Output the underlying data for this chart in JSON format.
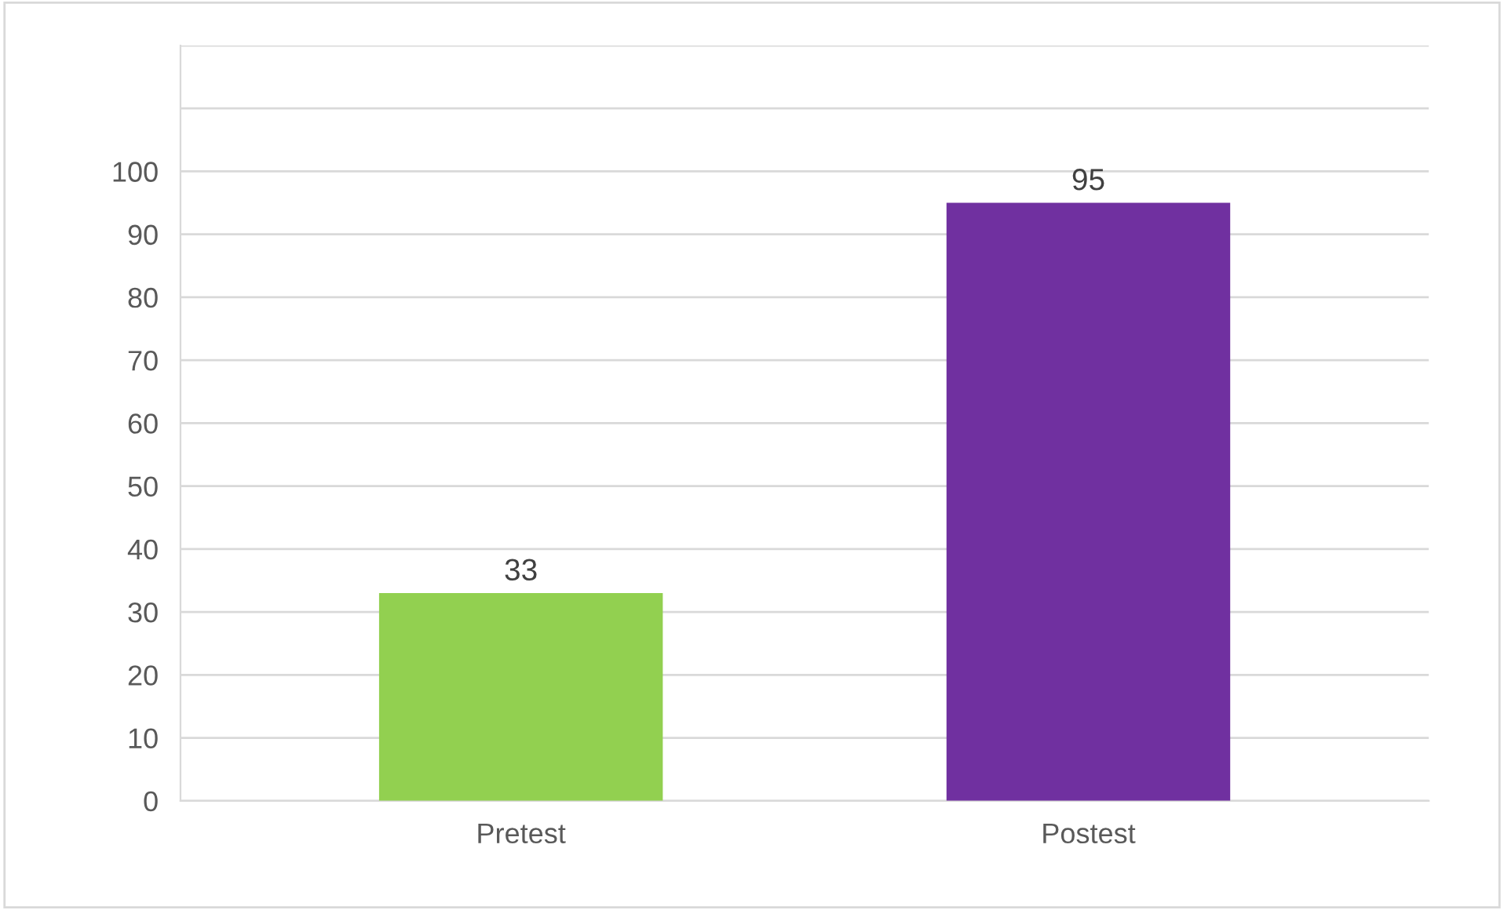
{
  "chart_data": {
    "type": "bar",
    "categories": [
      "Pretest",
      "Postest"
    ],
    "values": [
      33,
      95
    ],
    "colors": [
      "#92d050",
      "#7030a0"
    ],
    "ylim": [
      0,
      120
    ],
    "yticks": [
      0,
      10,
      20,
      30,
      40,
      50,
      60,
      70,
      80,
      90,
      100,
      {
        "value": 110,
        "label": null
      },
      {
        "value": 120,
        "label": null
      }
    ],
    "grid": "y",
    "data_labels": true
  }
}
